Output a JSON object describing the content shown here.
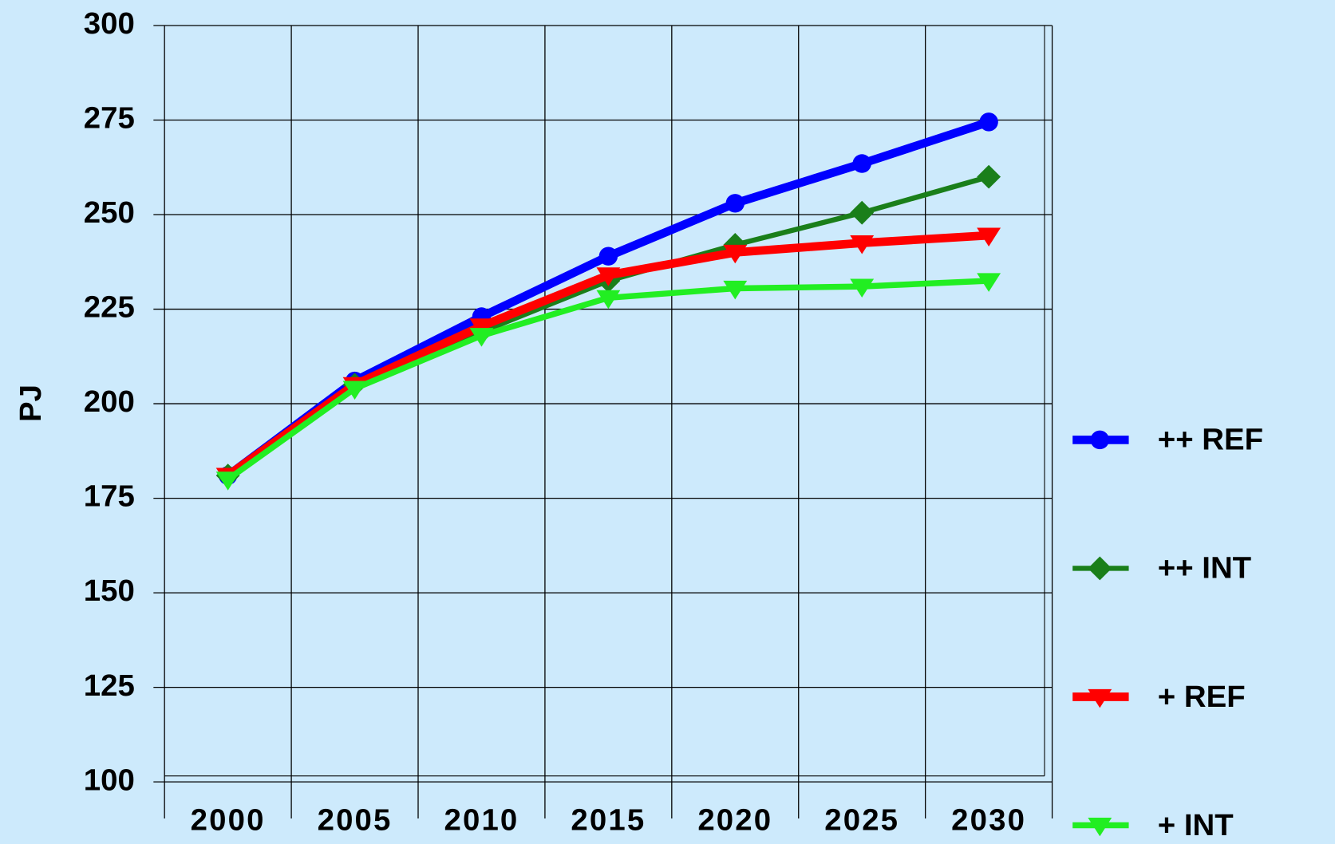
{
  "chart_data": {
    "type": "line",
    "y_label": "PJ",
    "categories": [
      "2000",
      "2005",
      "2010",
      "2015",
      "2020",
      "2025",
      "2030"
    ],
    "series": [
      {
        "name": "++ REF",
        "color": "#0000ff",
        "marker": "circle",
        "values": [
          181,
          206,
          223,
          239,
          253,
          263.5,
          274.5
        ]
      },
      {
        "name": "++ INT",
        "color": "#1a7f1a",
        "marker": "diamond",
        "values": [
          181,
          205,
          219,
          232.5,
          242,
          250.5,
          260
        ]
      },
      {
        "name": "+ REF",
        "color": "#ff0000",
        "marker": "triangle-down",
        "values": [
          181,
          205,
          220.5,
          234,
          240,
          242.5,
          244.5
        ]
      },
      {
        "name": "+ INT",
        "color": "#22ee22",
        "marker": "triangle-down",
        "values": [
          180,
          204,
          218,
          228,
          230.5,
          231,
          232.5
        ]
      }
    ],
    "ylim": [
      100,
      300
    ],
    "yticks": [
      100,
      125,
      150,
      175,
      200,
      225,
      250,
      275,
      300
    ],
    "grid": true,
    "legend": "right"
  }
}
